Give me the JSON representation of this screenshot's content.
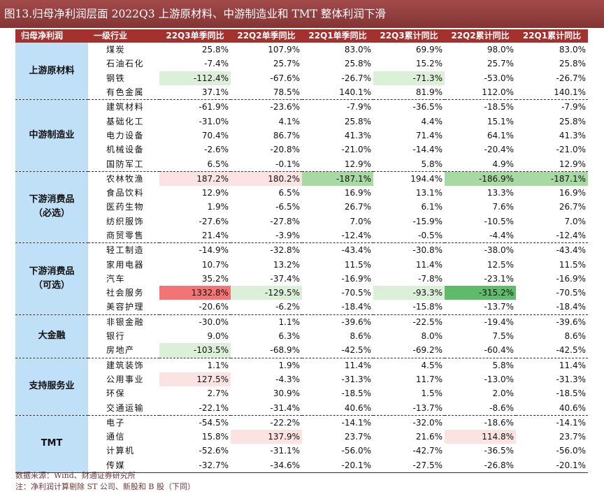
{
  "title": "图13.归母净利润层面 2022Q3 上游原材料、中游制造业和 TMT 整体利润下滑",
  "columns": [
    "归母净利润",
    "一级行业",
    "22Q3单季同比",
    "22Q2单季同比",
    "22Q1单季同比",
    "22Q3累计同比",
    "22Q2累计同比",
    "22Q1累计同比"
  ],
  "groups": [
    {
      "name": "上游原材料",
      "rows": [
        {
          "industry": "煤炭",
          "values": [
            "25.8%",
            "107.9%",
            "83.0%",
            "69.9%",
            "98.0%",
            "83.0%"
          ],
          "bg": [
            "",
            "",
            "",
            "",
            "",
            ""
          ]
        },
        {
          "industry": "石油石化",
          "values": [
            "-7.4%",
            "25.7%",
            "25.8%",
            "15.2%",
            "25.7%",
            "25.8%"
          ],
          "bg": [
            "",
            "",
            "",
            "",
            "",
            ""
          ]
        },
        {
          "industry": "钢铁",
          "values": [
            "-112.4%",
            "-67.6%",
            "-26.7%",
            "-71.3%",
            "-53.0%",
            "-26.7%"
          ],
          "bg": [
            "#dcefd8",
            "",
            "",
            "#dcefd8",
            "",
            ""
          ]
        },
        {
          "industry": "有色金属",
          "values": [
            "37.1%",
            "78.5%",
            "140.1%",
            "81.9%",
            "112.0%",
            "140.1%"
          ],
          "bg": [
            "",
            "",
            "",
            "",
            "",
            ""
          ]
        }
      ]
    },
    {
      "name": "中游制造业",
      "rows": [
        {
          "industry": "建筑材料",
          "values": [
            "-61.9%",
            "-23.6%",
            "-7.9%",
            "-36.5%",
            "-18.5%",
            "-7.9%"
          ],
          "bg": [
            "",
            "",
            "",
            "",
            "",
            ""
          ]
        },
        {
          "industry": "基础化工",
          "values": [
            "-31.0%",
            "4.1%",
            "25.8%",
            "4.4%",
            "15.1%",
            "25.8%"
          ],
          "bg": [
            "",
            "",
            "",
            "",
            "",
            ""
          ]
        },
        {
          "industry": "电力设备",
          "values": [
            "70.4%",
            "86.7%",
            "41.3%",
            "71.4%",
            "64.1%",
            "41.3%"
          ],
          "bg": [
            "",
            "",
            "",
            "",
            "",
            ""
          ]
        },
        {
          "industry": "机械设备",
          "values": [
            "-2.6%",
            "-20.8%",
            "-21.0%",
            "-14.4%",
            "-20.4%",
            "-21.0%"
          ],
          "bg": [
            "",
            "",
            "",
            "",
            "",
            ""
          ]
        },
        {
          "industry": "国防军工",
          "values": [
            "6.5%",
            "-0.1%",
            "12.9%",
            "5.8%",
            "4.9%",
            "12.9%"
          ],
          "bg": [
            "",
            "",
            "",
            "",
            "",
            ""
          ]
        }
      ]
    },
    {
      "name": "下游消费品（必选）",
      "rows": [
        {
          "industry": "农林牧渔",
          "values": [
            "187.2%",
            "180.2%",
            "-187.1%",
            "194.4%",
            "-186.9%",
            "-187.1%"
          ],
          "bg": [
            "#fbe3e3",
            "#fbe3e3",
            "#a9d9a3",
            "",
            "#a9d9a3",
            "#a9d9a3"
          ]
        },
        {
          "industry": "食品饮料",
          "values": [
            "12.9%",
            "6.5%",
            "16.9%",
            "13.1%",
            "13.3%",
            "16.9%"
          ],
          "bg": [
            "",
            "",
            "",
            "",
            "",
            ""
          ]
        },
        {
          "industry": "医药生物",
          "values": [
            "1.9%",
            "-6.5%",
            "26.7%",
            "6.1%",
            "7.6%",
            "26.7%"
          ],
          "bg": [
            "",
            "",
            "",
            "",
            "",
            ""
          ]
        },
        {
          "industry": "纺织服饰",
          "values": [
            "-27.6%",
            "-27.8%",
            "7.0%",
            "-15.9%",
            "-10.5%",
            "7.0%"
          ],
          "bg": [
            "",
            "",
            "",
            "",
            "",
            ""
          ]
        },
        {
          "industry": "商贸零售",
          "values": [
            "21.4%",
            "-3.9%",
            "-12.4%",
            "-0.5%",
            "-4.4%",
            "-12.4%"
          ],
          "bg": [
            "",
            "",
            "",
            "",
            "",
            ""
          ]
        }
      ]
    },
    {
      "name": "下游消费品（可选）",
      "rows": [
        {
          "industry": "轻工制造",
          "values": [
            "-14.9%",
            "-32.8%",
            "-43.4%",
            "-30.8%",
            "-38.0%",
            "-43.4%"
          ],
          "bg": [
            "",
            "",
            "",
            "",
            "",
            ""
          ]
        },
        {
          "industry": "家用电器",
          "values": [
            "10.7%",
            "13.2%",
            "11.5%",
            "11.4%",
            "12.5%",
            "11.5%"
          ],
          "bg": [
            "",
            "",
            "",
            "",
            "",
            ""
          ]
        },
        {
          "industry": "汽车",
          "values": [
            "35.2%",
            "-37.4%",
            "-16.9%",
            "-7.8%",
            "-23.1%",
            "-16.9%"
          ],
          "bg": [
            "",
            "",
            "",
            "",
            "",
            ""
          ]
        },
        {
          "industry": "社会服务",
          "values": [
            "1332.8%",
            "-129.5%",
            "-70.5%",
            "-93.3%",
            "-315.2%",
            "-70.5%"
          ],
          "bg": [
            "#f27474",
            "#dcefd8",
            "",
            "#dcefd8",
            "#5fbb6b",
            ""
          ]
        },
        {
          "industry": "美容护理",
          "values": [
            "-20.6%",
            "-6.2%",
            "-18.4%",
            "-15.8%",
            "-13.7%",
            "-18.4%"
          ],
          "bg": [
            "",
            "",
            "",
            "",
            "",
            ""
          ]
        }
      ]
    },
    {
      "name": "大金融",
      "rows": [
        {
          "industry": "非银金融",
          "values": [
            "-30.0%",
            "1.1%",
            "-39.6%",
            "-22.5%",
            "-19.4%",
            "-39.6%"
          ],
          "bg": [
            "",
            "",
            "",
            "",
            "",
            ""
          ]
        },
        {
          "industry": "银行",
          "values": [
            "9.0%",
            "6.3%",
            "8.6%",
            "8.0%",
            "7.5%",
            "8.6%"
          ],
          "bg": [
            "",
            "",
            "",
            "",
            "",
            ""
          ]
        },
        {
          "industry": "房地产",
          "values": [
            "-103.5%",
            "-68.9%",
            "-42.5%",
            "-69.2%",
            "-60.4%",
            "-42.5%"
          ],
          "bg": [
            "#dcefd8",
            "",
            "",
            "",
            "",
            ""
          ]
        }
      ]
    },
    {
      "name": "支持服务业",
      "rows": [
        {
          "industry": "建筑装饰",
          "values": [
            "1.1%",
            "1.9%",
            "11.4%",
            "4.5%",
            "5.8%",
            "11.4%"
          ],
          "bg": [
            "",
            "",
            "",
            "",
            "",
            ""
          ]
        },
        {
          "industry": "公用事业",
          "values": [
            "127.5%",
            "-4.3%",
            "-31.3%",
            "11.7%",
            "-13.0%",
            "-31.3%"
          ],
          "bg": [
            "#fbe3e3",
            "",
            "",
            "",
            "",
            ""
          ]
        },
        {
          "industry": "环保",
          "values": [
            "2.7%",
            "30.9%",
            "-18.5%",
            "1.5%",
            "2.0%",
            "-18.5%"
          ],
          "bg": [
            "",
            "",
            "",
            "",
            "",
            ""
          ]
        },
        {
          "industry": "交通运输",
          "values": [
            "-22.1%",
            "-31.4%",
            "40.6%",
            "-13.7%",
            "-8.6%",
            "40.6%"
          ],
          "bg": [
            "",
            "",
            "",
            "",
            "",
            ""
          ]
        }
      ]
    },
    {
      "name": "TMT",
      "rows": [
        {
          "industry": "电子",
          "values": [
            "-54.5%",
            "-22.2%",
            "-14.1%",
            "-32.0%",
            "-18.6%",
            "-14.1%"
          ],
          "bg": [
            "",
            "",
            "",
            "",
            "",
            ""
          ]
        },
        {
          "industry": "通信",
          "values": [
            "15.8%",
            "137.9%",
            "23.7%",
            "21.6%",
            "114.8%",
            "23.7%"
          ],
          "bg": [
            "",
            "#fbe3e3",
            "",
            "",
            "#fbe3e3",
            ""
          ]
        },
        {
          "industry": "计算机",
          "values": [
            "-52.6%",
            "-31.1%",
            "-56.0%",
            "-42.7%",
            "-36.5%",
            "-56.0%"
          ],
          "bg": [
            "",
            "",
            "",
            "",
            "",
            ""
          ]
        },
        {
          "industry": "传媒",
          "values": [
            "-32.7%",
            "-34.6%",
            "-20.1%",
            "-27.5%",
            "-26.8%",
            "-20.1%"
          ],
          "bg": [
            "",
            "",
            "",
            "",
            "",
            ""
          ]
        }
      ]
    }
  ],
  "notes": {
    "source": "数据来源：Wind、财通证券研究所",
    "note": "注：净利润计算剔除 ST 公司、新股和 B 股（下同）"
  }
}
